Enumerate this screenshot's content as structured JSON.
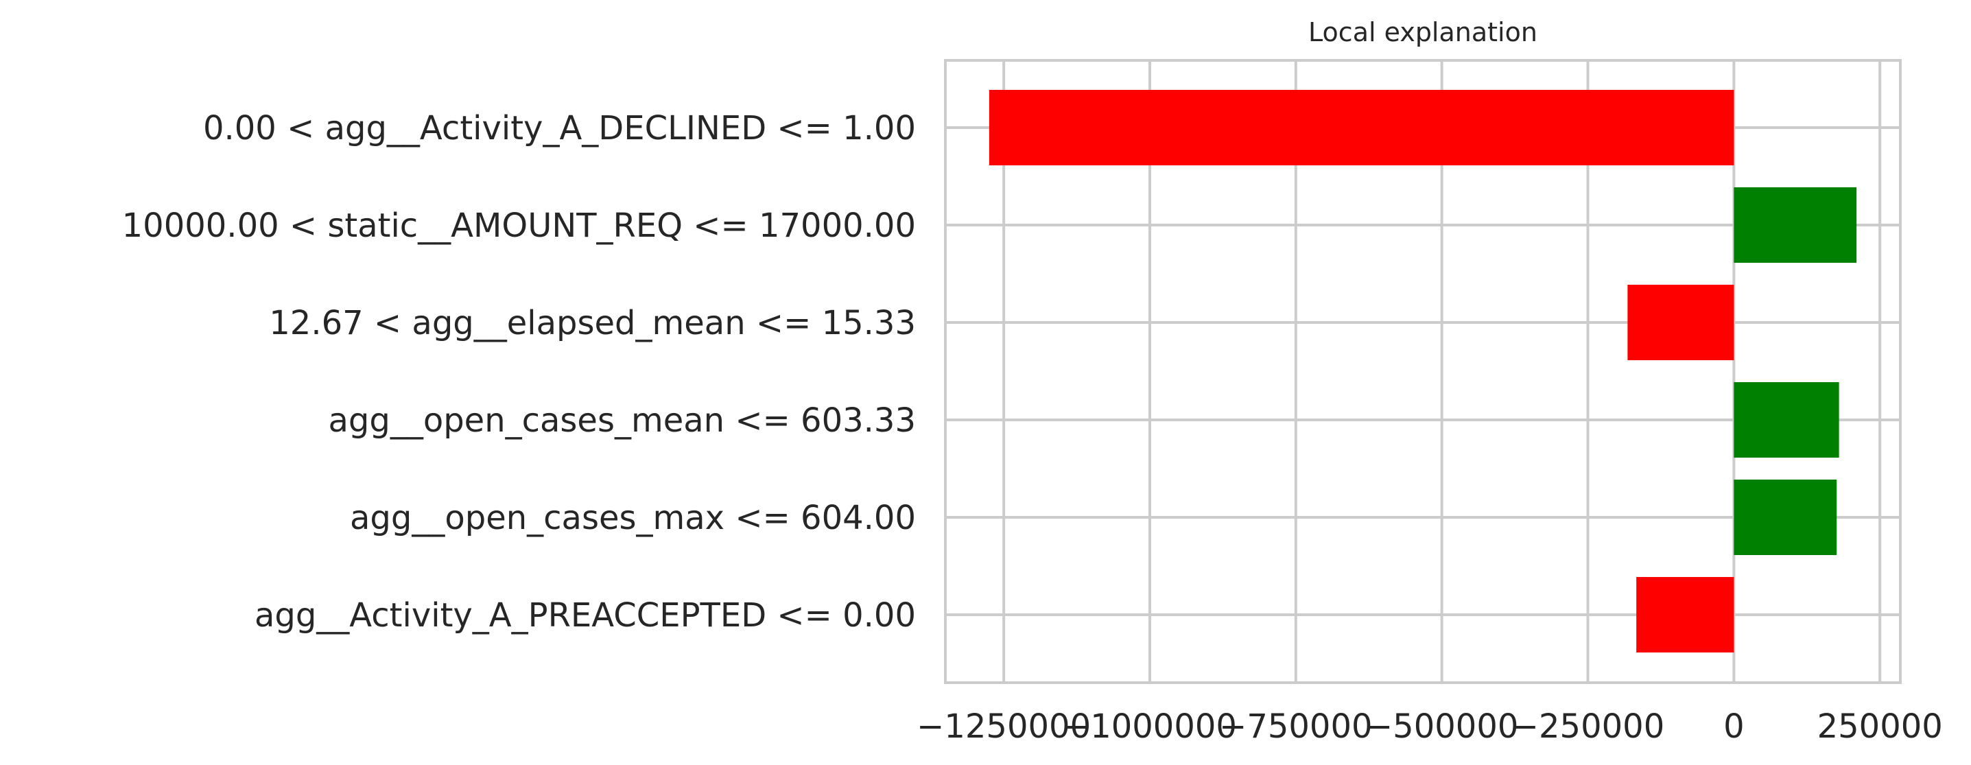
{
  "chart_data": {
    "type": "bar",
    "orientation": "horizontal",
    "title": "Local explanation",
    "xlabel": "",
    "ylabel": "",
    "categories": [
      "0.00 < agg__Activity_A_DECLINED <= 1.00",
      "10000.00 < static__AMOUNT_REQ <= 17000.00",
      "12.67 < agg__elapsed_mean <= 15.33",
      "agg__open_cases_mean <= 603.33",
      "agg__open_cases_max <= 604.00",
      "agg__Activity_A_PREACCEPTED <= 0.00"
    ],
    "values": [
      -1275000,
      210000,
      -182000,
      180000,
      176000,
      -167000
    ],
    "colors": {
      "positive": "#008000",
      "negative": "#ff0000",
      "grid": "#cccccc",
      "axis": "#cccccc",
      "text": "#262626"
    },
    "xlim": [
      -1350000,
      285000
    ],
    "x_ticks": [
      -1250000,
      -1000000,
      -750000,
      -500000,
      -250000,
      0,
      250000
    ],
    "x_tick_labels": [
      "−1250000",
      "−1000000",
      "−750000",
      "−500000",
      "−250000",
      "0",
      "250000"
    ],
    "grid": true
  }
}
